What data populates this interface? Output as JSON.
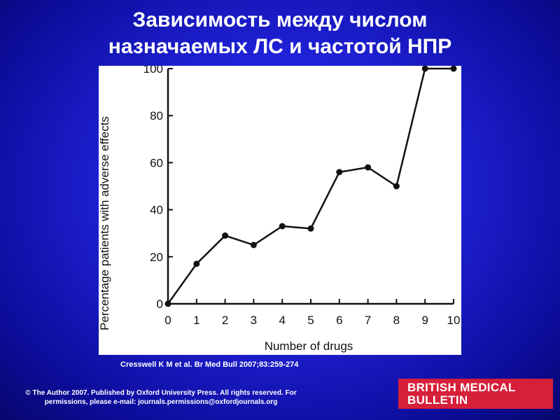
{
  "slide": {
    "title_line1": "Зависимость между числом",
    "title_line2": "назначаемых ЛС и частотой НПР",
    "citation": "Cresswell K M et al. Br Med Bull 2007;83:259-274",
    "copyright_line1": "© The Author 2007. Published by Oxford University Press. All rights reserved. For",
    "copyright_line2": "permissions, please e-mail: journals.permissions@oxfordjournals.org",
    "logo_line1": "BRITISH MEDICAL",
    "logo_line2": "BULLETIN",
    "colors": {
      "background": "#2022d8",
      "title_text": "#ffffff",
      "logo_background": "#d6203a",
      "plot_line": "#111111"
    }
  },
  "chart_data": {
    "type": "line",
    "xlabel": "Number of drugs",
    "ylabel": "Percentage patients with adverse effects",
    "x": [
      0,
      1,
      2,
      3,
      4,
      5,
      6,
      7,
      8,
      9,
      10
    ],
    "y": [
      0,
      17,
      29,
      25,
      33,
      32,
      56,
      58,
      50,
      100,
      100
    ],
    "xlim": [
      0,
      10
    ],
    "ylim": [
      0,
      100
    ],
    "xticks": [
      "0",
      "1",
      "2",
      "3",
      "4",
      "5",
      "6",
      "7",
      "8",
      "9",
      "10"
    ],
    "yticks": [
      "0",
      "20",
      "40",
      "60",
      "80",
      "100"
    ],
    "ytick_values": [
      0,
      20,
      40,
      60,
      80,
      100
    ],
    "grid": false
  }
}
